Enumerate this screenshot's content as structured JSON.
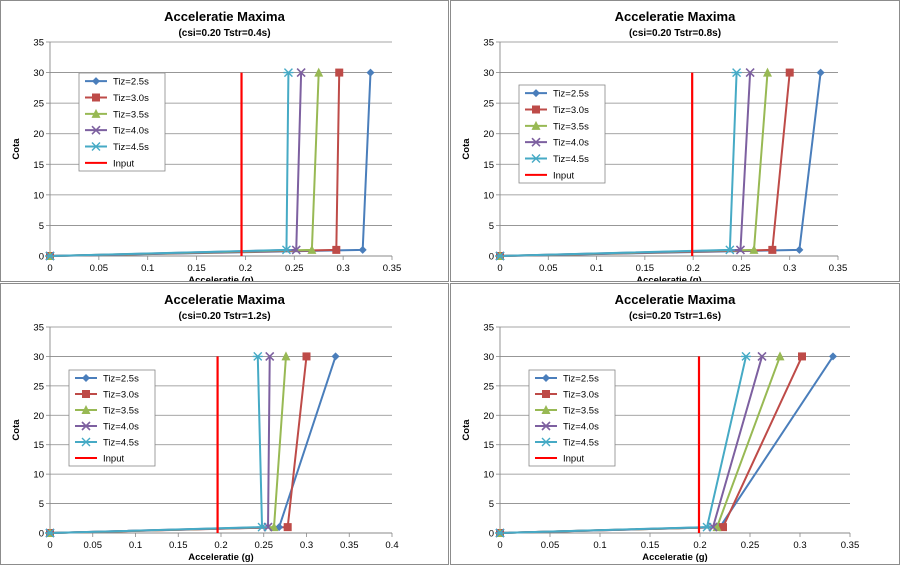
{
  "chart_data": [
    {
      "type": "line",
      "title": "Acceleratie Maxima",
      "subtitle": "(csi=0.20  Tstr=0.4s)",
      "xlabel": "Acceleratie (g)",
      "ylabel": "Cota",
      "xlim": [
        0,
        0.35
      ],
      "ylim": [
        0,
        35
      ],
      "x_ticks": [
        0,
        0.05,
        0.1,
        0.15,
        0.2,
        0.25,
        0.3,
        0.35
      ],
      "x_tick_labels": [
        "0",
        "0.05",
        "0.1",
        "0.15",
        "0.2",
        "0.25",
        "0.3",
        "0.35"
      ],
      "y_ticks": [
        0,
        5,
        10,
        15,
        20,
        25,
        30,
        35
      ],
      "y_tick_labels": [
        "0",
        "5",
        "10",
        "15",
        "20",
        "25",
        "30",
        "35"
      ],
      "grid": true,
      "legend_position": "left",
      "series": [
        {
          "name": "Tiz=2.5s",
          "color": "#4a7ebb",
          "marker": "diamond",
          "points": [
            [
              0,
              0
            ],
            [
              0.32,
              1
            ],
            [
              0.328,
              30
            ]
          ]
        },
        {
          "name": "Tiz=3.0s",
          "color": "#be4b48",
          "marker": "square",
          "points": [
            [
              0,
              0
            ],
            [
              0.293,
              1
            ],
            [
              0.296,
              30
            ]
          ]
        },
        {
          "name": "Tiz=3.5s",
          "color": "#98b954",
          "marker": "triangle",
          "points": [
            [
              0,
              0
            ],
            [
              0.268,
              1
            ],
            [
              0.275,
              30
            ]
          ]
        },
        {
          "name": "Tiz=4.0s",
          "color": "#7d60a0",
          "marker": "x",
          "points": [
            [
              0,
              0
            ],
            [
              0.252,
              1
            ],
            [
              0.257,
              30
            ]
          ]
        },
        {
          "name": "Tiz=4.5s",
          "color": "#46aac5",
          "marker": "star",
          "points": [
            [
              0,
              0
            ],
            [
              0.242,
              1
            ],
            [
              0.244,
              30
            ]
          ]
        },
        {
          "name": "Input",
          "color": "#ff0000",
          "marker": "none",
          "points": [
            [
              0.196,
              0
            ],
            [
              0.196,
              30
            ]
          ]
        }
      ]
    },
    {
      "type": "line",
      "title": "Acceleratie Maxima",
      "subtitle": "(csi=0.20  Tstr=0.8s)",
      "xlabel": "Acceleratie (g)",
      "ylabel": "Cota",
      "xlim": [
        0,
        0.35
      ],
      "ylim": [
        0,
        35
      ],
      "x_ticks": [
        0,
        0.05,
        0.1,
        0.15,
        0.2,
        0.25,
        0.3,
        0.35
      ],
      "x_tick_labels": [
        "0",
        "0.05",
        "0.1",
        "0.15",
        "0.2",
        "0.25",
        "0.3",
        "0.35"
      ],
      "y_ticks": [
        0,
        5,
        10,
        15,
        20,
        25,
        30,
        35
      ],
      "y_tick_labels": [
        "0",
        "5",
        "10",
        "15",
        "20",
        "25",
        "30",
        "35"
      ],
      "grid": true,
      "legend_position": "left",
      "series": [
        {
          "name": "Tiz=2.5s",
          "color": "#4a7ebb",
          "marker": "diamond",
          "points": [
            [
              0,
              0
            ],
            [
              0.31,
              1
            ],
            [
              0.332,
              30
            ]
          ]
        },
        {
          "name": "Tiz=3.0s",
          "color": "#be4b48",
          "marker": "square",
          "points": [
            [
              0,
              0
            ],
            [
              0.282,
              1
            ],
            [
              0.3,
              30
            ]
          ]
        },
        {
          "name": "Tiz=3.5s",
          "color": "#98b954",
          "marker": "triangle",
          "points": [
            [
              0,
              0
            ],
            [
              0.263,
              1
            ],
            [
              0.277,
              30
            ]
          ]
        },
        {
          "name": "Tiz=4.0s",
          "color": "#7d60a0",
          "marker": "x",
          "points": [
            [
              0,
              0
            ],
            [
              0.249,
              1
            ],
            [
              0.259,
              30
            ]
          ]
        },
        {
          "name": "Tiz=4.5s",
          "color": "#46aac5",
          "marker": "star",
          "points": [
            [
              0,
              0
            ],
            [
              0.238,
              1
            ],
            [
              0.245,
              30
            ]
          ]
        },
        {
          "name": "Input",
          "color": "#ff0000",
          "marker": "none",
          "points": [
            [
              0.199,
              0
            ],
            [
              0.199,
              30
            ]
          ]
        }
      ]
    },
    {
      "type": "line",
      "title": "Acceleratie Maxima",
      "subtitle": "(csi=0.20  Tstr=1.2s)",
      "xlabel": "Acceleratie (g)",
      "ylabel": "Cota",
      "xlim": [
        0,
        0.4
      ],
      "ylim": [
        0,
        35
      ],
      "x_ticks": [
        0,
        0.05,
        0.1,
        0.15,
        0.2,
        0.25,
        0.3,
        0.35,
        0.4
      ],
      "x_tick_labels": [
        "0",
        "0.05",
        "0.1",
        "0.15",
        "0.2",
        "0.25",
        "0.3",
        "0.35",
        "0.4"
      ],
      "y_ticks": [
        0,
        5,
        10,
        15,
        20,
        25,
        30,
        35
      ],
      "y_tick_labels": [
        "0",
        "5",
        "10",
        "15",
        "20",
        "25",
        "30",
        "35"
      ],
      "grid": true,
      "legend_position": "left",
      "series": [
        {
          "name": "Tiz=2.5s",
          "color": "#4a7ebb",
          "marker": "diamond",
          "points": [
            [
              0,
              0
            ],
            [
              0.268,
              1
            ],
            [
              0.334,
              30
            ]
          ]
        },
        {
          "name": "Tiz=3.0s",
          "color": "#be4b48",
          "marker": "square",
          "points": [
            [
              0,
              0
            ],
            [
              0.278,
              1
            ],
            [
              0.3,
              30
            ]
          ]
        },
        {
          "name": "Tiz=3.5s",
          "color": "#98b954",
          "marker": "triangle",
          "points": [
            [
              0,
              0
            ],
            [
              0.262,
              1
            ],
            [
              0.276,
              30
            ]
          ]
        },
        {
          "name": "Tiz=4.0s",
          "color": "#7d60a0",
          "marker": "x",
          "points": [
            [
              0,
              0
            ],
            [
              0.255,
              1
            ],
            [
              0.257,
              30
            ]
          ]
        },
        {
          "name": "Tiz=4.5s",
          "color": "#46aac5",
          "marker": "star",
          "points": [
            [
              0,
              0
            ],
            [
              0.248,
              1
            ],
            [
              0.243,
              30
            ]
          ]
        },
        {
          "name": "Input",
          "color": "#ff0000",
          "marker": "none",
          "points": [
            [
              0.196,
              0
            ],
            [
              0.196,
              30
            ]
          ]
        }
      ]
    },
    {
      "type": "line",
      "title": "Acceleratie Maxima",
      "subtitle": "(csi=0.20  Tstr=1.6s)",
      "xlabel": "Acceleratie (g)",
      "ylabel": "Cota",
      "xlim": [
        0,
        0.35
      ],
      "ylim": [
        0,
        35
      ],
      "x_ticks": [
        0,
        0.05,
        0.1,
        0.15,
        0.2,
        0.25,
        0.3,
        0.35
      ],
      "x_tick_labels": [
        "0",
        "0.05",
        "0.1",
        "0.15",
        "0.2",
        "0.25",
        "0.3",
        "0.35"
      ],
      "y_ticks": [
        0,
        5,
        10,
        15,
        20,
        25,
        30,
        35
      ],
      "y_tick_labels": [
        "0",
        "5",
        "10",
        "15",
        "20",
        "25",
        "30",
        "35"
      ],
      "grid": true,
      "legend_position": "left",
      "series": [
        {
          "name": "Tiz=2.5s",
          "color": "#4a7ebb",
          "marker": "diamond",
          "points": [
            [
              0,
              0
            ],
            [
              0.22,
              1
            ],
            [
              0.333,
              30
            ]
          ]
        },
        {
          "name": "Tiz=3.0s",
          "color": "#be4b48",
          "marker": "square",
          "points": [
            [
              0,
              0
            ],
            [
              0.223,
              1
            ],
            [
              0.302,
              30
            ]
          ]
        },
        {
          "name": "Tiz=3.5s",
          "color": "#98b954",
          "marker": "triangle",
          "points": [
            [
              0,
              0
            ],
            [
              0.217,
              1
            ],
            [
              0.28,
              30
            ]
          ]
        },
        {
          "name": "Tiz=4.0s",
          "color": "#7d60a0",
          "marker": "x",
          "points": [
            [
              0,
              0
            ],
            [
              0.213,
              1
            ],
            [
              0.262,
              30
            ]
          ]
        },
        {
          "name": "Tiz=4.5s",
          "color": "#46aac5",
          "marker": "star",
          "points": [
            [
              0,
              0
            ],
            [
              0.207,
              1
            ],
            [
              0.246,
              30
            ]
          ]
        },
        {
          "name": "Input",
          "color": "#ff0000",
          "marker": "none",
          "points": [
            [
              0.199,
              0
            ],
            [
              0.199,
              30
            ]
          ]
        }
      ]
    }
  ]
}
